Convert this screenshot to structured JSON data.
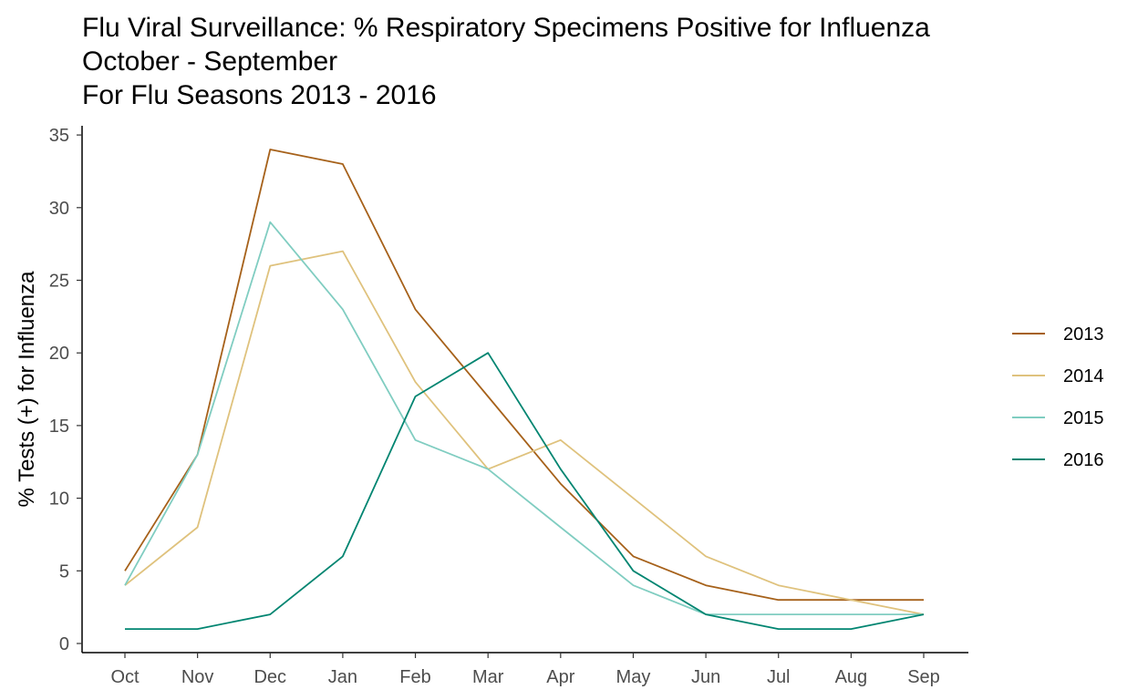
{
  "title": {
    "line1": "Flu Viral Surveillance: % Respiratory Specimens Positive for Influenza",
    "line2": "October - September",
    "line3": "For Flu Seasons 2013 - 2016"
  },
  "chart_data": {
    "type": "line",
    "title": "Flu Viral Surveillance: % Respiratory Specimens Positive for Influenza\nOctober - September\nFor Flu Seasons 2013 - 2016",
    "xlabel": "",
    "ylabel": "% Tests (+) for Influenza",
    "categories": [
      "Oct",
      "Nov",
      "Dec",
      "Jan",
      "Feb",
      "Mar",
      "Apr",
      "May",
      "Jun",
      "Jul",
      "Aug",
      "Sep"
    ],
    "ylim": [
      0,
      35
    ],
    "yticks": [
      0,
      5,
      10,
      15,
      20,
      25,
      30,
      35
    ],
    "grid": false,
    "legend_position": "right",
    "series": [
      {
        "name": "2013",
        "color": "#a6611a",
        "values": [
          5,
          13,
          34,
          33,
          23,
          17,
          11,
          6,
          4,
          3,
          3,
          3
        ]
      },
      {
        "name": "2014",
        "color": "#dfc27d",
        "values": [
          4,
          8,
          26,
          27,
          18,
          12,
          14,
          10,
          6,
          4,
          3,
          2
        ]
      },
      {
        "name": "2015",
        "color": "#80cdc1",
        "values": [
          4,
          13,
          29,
          23,
          14,
          12,
          8,
          4,
          2,
          2,
          2,
          2
        ]
      },
      {
        "name": "2016",
        "color": "#018571",
        "values": [
          1,
          1,
          2,
          6,
          17,
          20,
          12,
          5,
          2,
          1,
          1,
          2
        ]
      }
    ]
  }
}
